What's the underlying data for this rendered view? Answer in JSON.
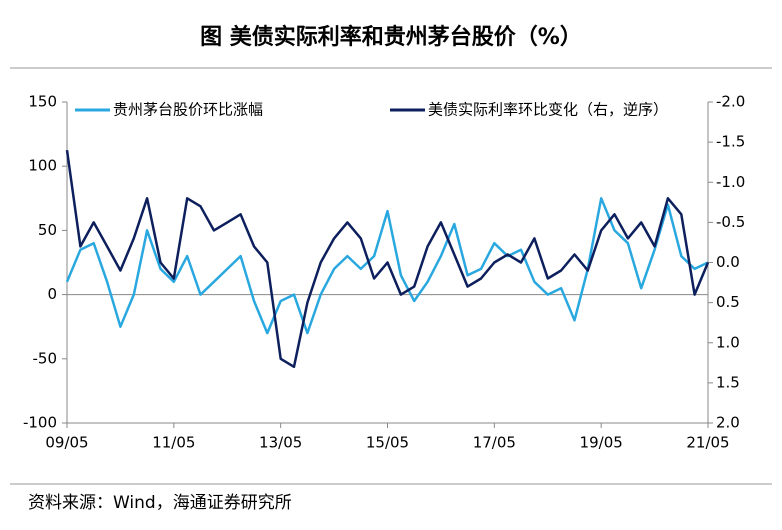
{
  "chart_data": {
    "type": "line",
    "title": "图  美债实际利率和贵州茅台股价（%）",
    "source": "资料来源：Wind，海通证券研究所",
    "x": [
      "2009-05",
      "2009-08",
      "2009-11",
      "2010-02",
      "2010-05",
      "2010-08",
      "2010-11",
      "2011-02",
      "2011-05",
      "2011-08",
      "2011-11",
      "2012-02",
      "2012-05",
      "2012-08",
      "2012-11",
      "2013-02",
      "2013-05",
      "2013-08",
      "2013-11",
      "2014-02",
      "2014-05",
      "2014-08",
      "2014-11",
      "2015-02",
      "2015-05",
      "2015-08",
      "2015-11",
      "2016-02",
      "2016-05",
      "2016-08",
      "2016-11",
      "2017-02",
      "2017-05",
      "2017-08",
      "2017-11",
      "2018-02",
      "2018-05",
      "2018-08",
      "2018-11",
      "2019-02",
      "2019-05",
      "2019-08",
      "2019-11",
      "2020-02",
      "2020-05",
      "2020-08",
      "2020-11",
      "2021-02",
      "2021-05"
    ],
    "series": [
      {
        "name": "贵州茅台股价环比涨幅",
        "color": "#29a8e0",
        "axis": "y",
        "values": [
          10,
          35,
          40,
          10,
          -25,
          0,
          50,
          20,
          10,
          30,
          0,
          10,
          20,
          30,
          -5,
          -30,
          -5,
          0,
          -30,
          0,
          20,
          30,
          20,
          30,
          65,
          15,
          -5,
          10,
          30,
          55,
          15,
          20,
          40,
          30,
          35,
          10,
          0,
          5,
          -20,
          20,
          75,
          50,
          40,
          5,
          35,
          70,
          30,
          20,
          25
        ]
      },
      {
        "name": "美债实际利率环比变化（右，逆序）",
        "color": "#0d1f5c",
        "axis": "y2",
        "values": [
          -1.4,
          -0.2,
          -0.5,
          -0.2,
          0.1,
          -0.3,
          -0.8,
          0.0,
          0.2,
          -0.8,
          -0.7,
          -0.4,
          -0.5,
          -0.6,
          -0.2,
          0.0,
          1.2,
          1.3,
          0.5,
          0.0,
          -0.3,
          -0.5,
          -0.3,
          0.2,
          0.0,
          0.4,
          0.3,
          -0.2,
          -0.5,
          -0.1,
          0.3,
          0.2,
          0.0,
          -0.1,
          0.0,
          -0.3,
          0.2,
          0.1,
          -0.1,
          0.1,
          -0.4,
          -0.6,
          -0.3,
          -0.5,
          -0.2,
          -0.8,
          -0.6,
          0.4,
          0.0
        ]
      }
    ],
    "xlim": [
      "2009-05",
      "2021-05"
    ],
    "xticks": [
      {
        "value": "2009-05",
        "label": "09/05"
      },
      {
        "value": "2011-05",
        "label": "11/05"
      },
      {
        "value": "2013-05",
        "label": "13/05"
      },
      {
        "value": "2015-05",
        "label": "15/05"
      },
      {
        "value": "2017-05",
        "label": "17/05"
      },
      {
        "value": "2019-05",
        "label": "19/05"
      },
      {
        "value": "2021-05",
        "label": "21/05"
      }
    ],
    "ylim": [
      -100,
      150
    ],
    "yticks": [
      -100,
      -50,
      0,
      50,
      100,
      150
    ],
    "y2lim": [
      2.0,
      -2.0
    ],
    "y2ticks": [
      {
        "value": -2.0,
        "label": "-2.0"
      },
      {
        "value": -1.5,
        "label": "-1.5"
      },
      {
        "value": -1.0,
        "label": "-1.0"
      },
      {
        "value": -0.5,
        "label": "-0.5"
      },
      {
        "value": 0.0,
        "label": "0.0"
      },
      {
        "value": 0.5,
        "label": "0.5"
      },
      {
        "value": 1.0,
        "label": "1.0"
      },
      {
        "value": 1.5,
        "label": "1.5"
      },
      {
        "value": 2.0,
        "label": "2.0"
      }
    ],
    "y2_reversed": true,
    "grid": false
  }
}
